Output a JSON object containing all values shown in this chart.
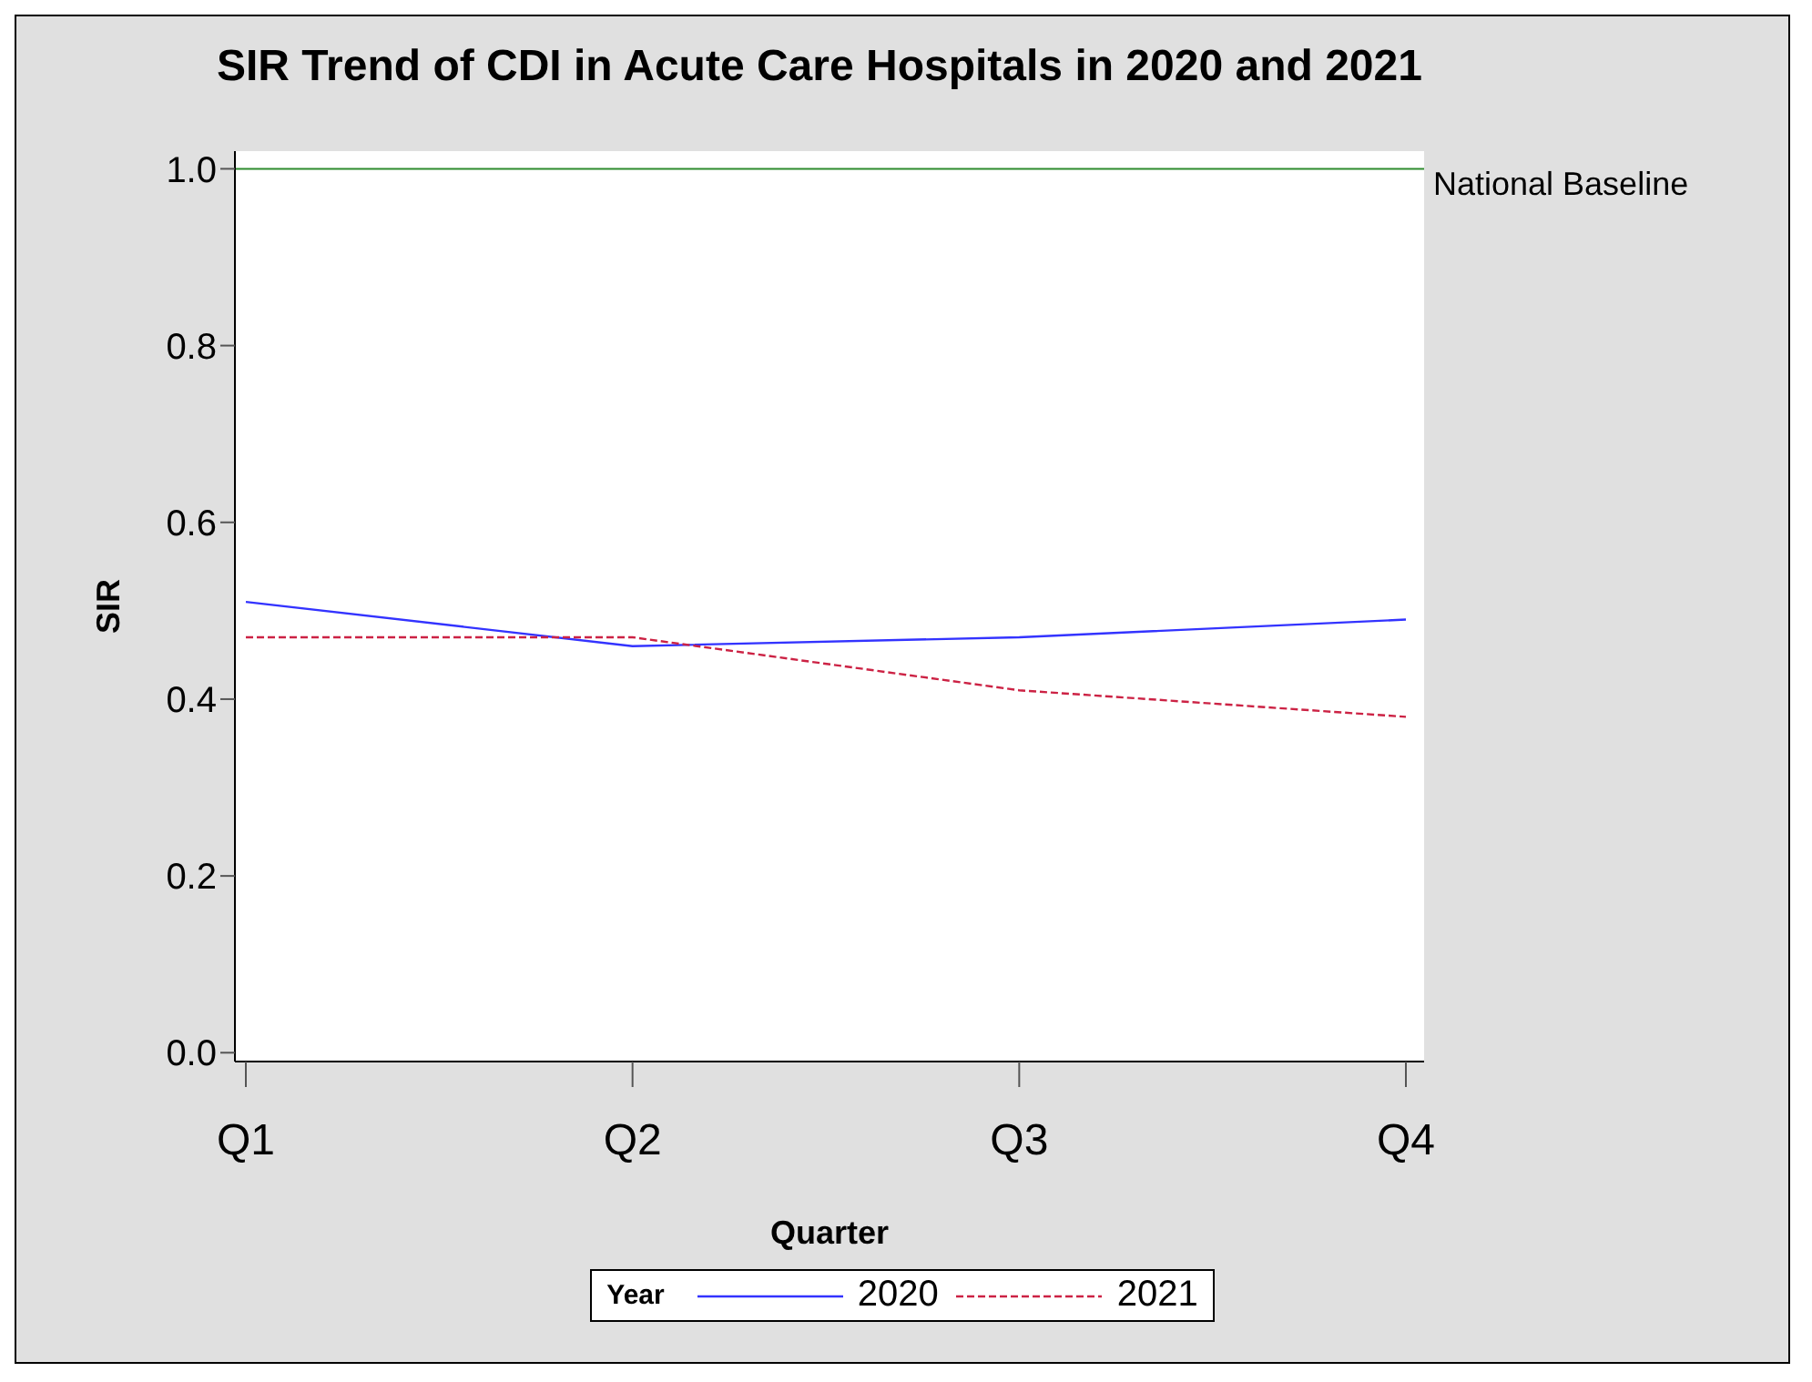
{
  "chart_data": {
    "type": "line",
    "title": "SIR Trend of CDI in Acute Care Hospitals in 2020 and 2021",
    "xlabel": "Quarter",
    "ylabel": "SIR",
    "legend_title": "Year",
    "categories": [
      "Q1",
      "Q2",
      "Q3",
      "Q4"
    ],
    "series": [
      {
        "name": "2020",
        "color": "#3333ff",
        "values": [
          0.51,
          0.46,
          0.47,
          0.49
        ],
        "line_style": "solid"
      },
      {
        "name": "2021",
        "color": "#cc2244",
        "values": [
          0.47,
          0.47,
          0.41,
          0.38
        ],
        "line_style": "dashed"
      }
    ],
    "ylim": [
      -0.01,
      1.02
    ],
    "yticks": [
      {
        "value": 0,
        "label": "0.0"
      },
      {
        "value": 0.2,
        "label": "0.2"
      },
      {
        "value": 0.4,
        "label": "0.4"
      },
      {
        "value": 0.6,
        "label": "0.6"
      },
      {
        "value": 0.8,
        "label": "0.8"
      },
      {
        "value": 1,
        "label": "1.0"
      }
    ],
    "ref_lines": [
      {
        "axis": "y",
        "value": 1,
        "label": "National Baseline",
        "color": "#2e8b2e"
      }
    ],
    "grid": false,
    "legend": "bottom",
    "marker": "none"
  }
}
